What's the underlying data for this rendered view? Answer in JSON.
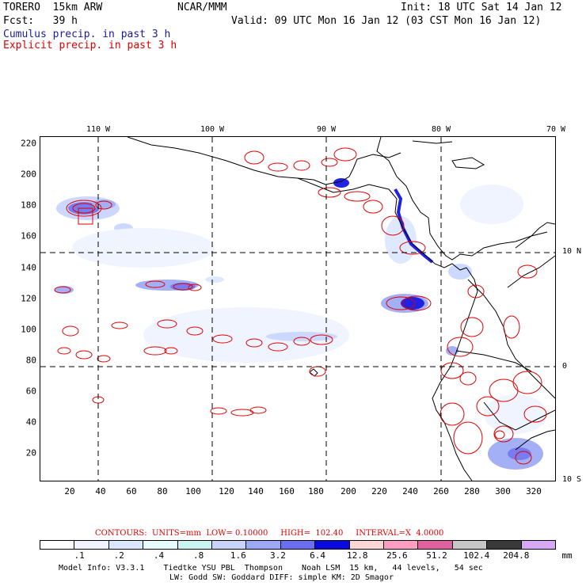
{
  "header": {
    "model_run": "TORERO  15km ARW",
    "institution": "NCAR/MMM",
    "init": "Init: 18 UTC Sat 14 Jan 12",
    "fcst": "Fcst:   39 h",
    "valid": "Valid: 09 UTC Mon 16 Jan 12 (03 CST Mon 16 Jan 12)",
    "field1": "Cumulus precip. in past 3 h",
    "field2": "Explicit precip. in past 3 h"
  },
  "colors": {
    "cumulus_label": "#1a1aa0",
    "explicit_label": "#e00000",
    "coast": "#000000",
    "contour": "#e00000"
  },
  "map": {
    "lon_labels": [
      "110 W",
      "100 W",
      "90 W",
      "80 W",
      "70 W"
    ],
    "lat_labels": [
      "10 N",
      "0",
      "10 S"
    ],
    "x_ticks": [
      "20",
      "40",
      "60",
      "80",
      "100",
      "120",
      "140",
      "160",
      "180",
      "200",
      "220",
      "240",
      "260",
      "280",
      "300",
      "320"
    ],
    "y_ticks": [
      "220",
      "200",
      "180",
      "160",
      "140",
      "120",
      "100",
      "80",
      "60",
      "40",
      "20"
    ]
  },
  "footer": {
    "contours_label": "CONTOURS:  UNITS=mm  LOW= 0.10000     HIGH=  102.40     INTERVAL=X  4.0000",
    "legend_colors": [
      "#ffffff",
      "#eef3ff",
      "#dbe7ff",
      "#e6fbfb",
      "#c8f4f4",
      "#c7d4ff",
      "#9aa8f5",
      "#6a6ef0",
      "#0a0ae0",
      "#ffd6d6",
      "#ff9ec0",
      "#e060a0",
      "#c8c8c8",
      "#3a3a3a",
      "#d6a8f5"
    ],
    "legend_labels": [
      ".1",
      ".2",
      ".4",
      ".8",
      "1.6",
      "3.2",
      "6.4",
      "12.8",
      "25.6",
      "51.2",
      "102.4",
      "204.8"
    ],
    "legend_units": "mm",
    "model_info_1": "Model Info: V3.3.1    Tiedtke YSU PBL  Thompson    Noah LSM  15 km,   44 levels,   54 sec",
    "model_info_2": "LW: Godd SW: Goddard DIFF: simple KM: 2D Smagor"
  }
}
